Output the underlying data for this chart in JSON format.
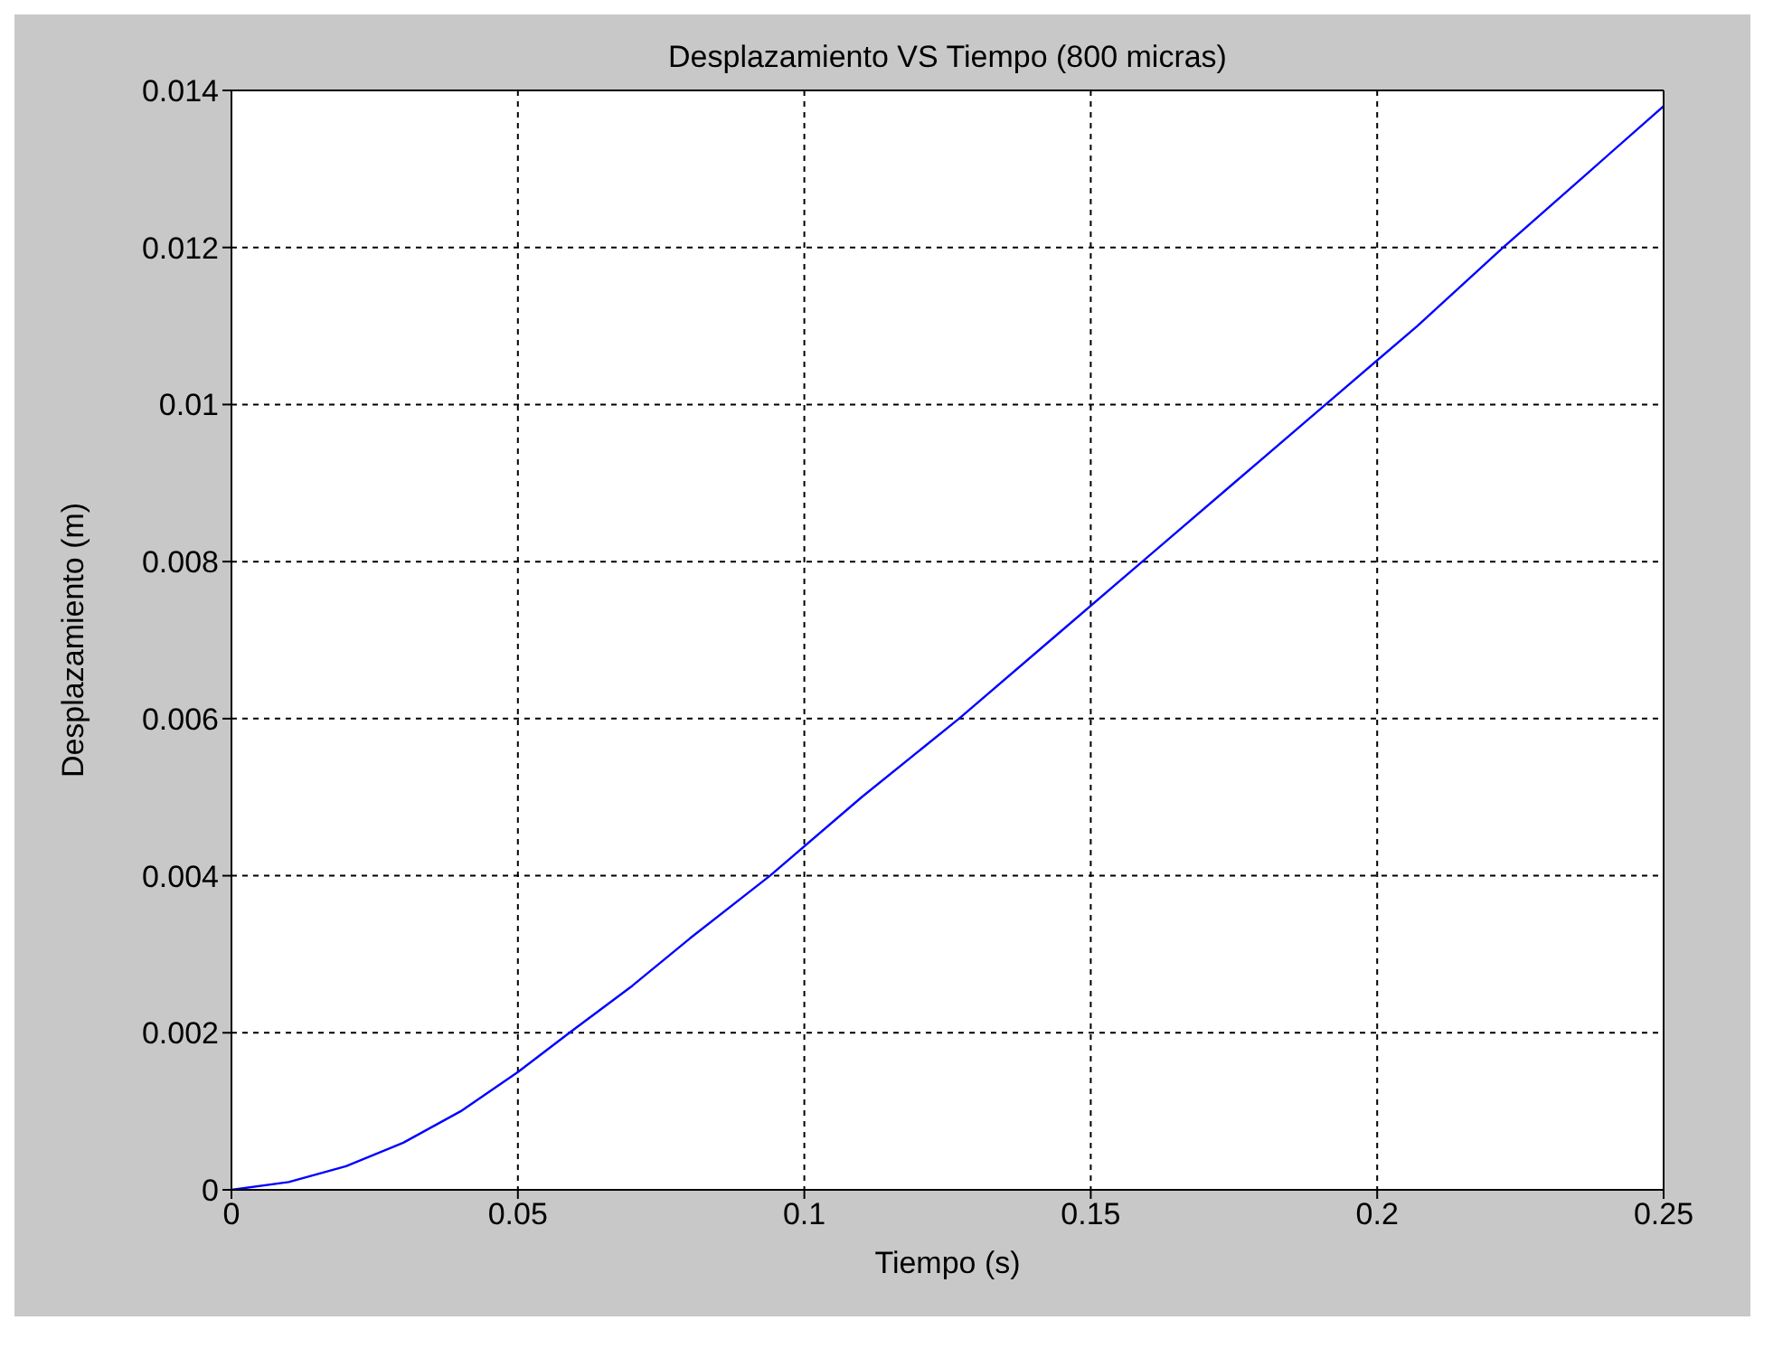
{
  "chart_data": {
    "type": "line",
    "title": "Desplazamiento VS Tiempo (800 micras)",
    "xlabel": "Tiempo (s)",
    "ylabel": "Desplazamiento (m)",
    "x": [
      0,
      0.01,
      0.02,
      0.03,
      0.04,
      0.05,
      0.059,
      0.07,
      0.08,
      0.094,
      0.11,
      0.127,
      0.143,
      0.159,
      0.175,
      0.191,
      0.207,
      0.222,
      0.236,
      0.25
    ],
    "series": [
      {
        "color": "#0000ff",
        "values": [
          0,
          0.0001,
          0.0003,
          0.0006,
          0.001,
          0.0015,
          0.002,
          0.0026,
          0.0032,
          0.004,
          0.005,
          0.006,
          0.007,
          0.008,
          0.009,
          0.01,
          0.011,
          0.012,
          0.0129,
          0.0138
        ]
      }
    ],
    "xlim": [
      0,
      0.25
    ],
    "xticks": [
      0,
      0.05,
      0.1,
      0.15,
      0.2,
      0.25
    ],
    "ylim": [
      0,
      0.014
    ],
    "yticks": [
      0,
      0.002,
      0.004,
      0.006,
      0.008,
      0.01,
      0.012,
      0.014
    ],
    "grid": true,
    "line_style": "solid",
    "marker": "none"
  }
}
